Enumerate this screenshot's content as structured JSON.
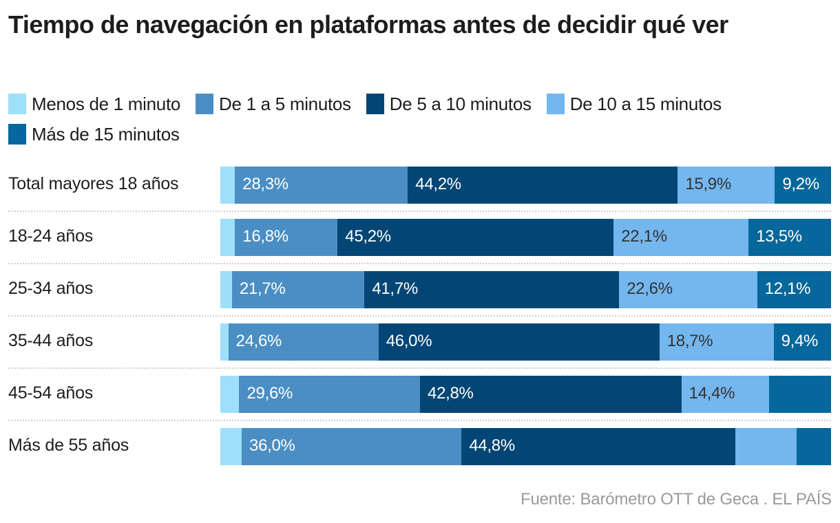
{
  "chart_data": {
    "type": "bar",
    "orientation": "horizontal",
    "stacked": true,
    "title": "Tiempo de navegación en plataformas antes de decidir qué ver",
    "xlabel": "",
    "ylabel": "",
    "xlim": [
      0,
      100
    ],
    "unit": "%",
    "grid": false,
    "legend_position": "top-left",
    "categories": [
      "Total mayores 18 años",
      "18-24 años",
      "25-34 años",
      "35-44 años",
      "45-54 años",
      "Más de 55 años"
    ],
    "series": [
      {
        "name": "Menos de 1 minuto",
        "color": "#9edffa",
        "label_color": "#ffffff",
        "values": [
          2.4,
          2.4,
          1.9,
          1.3,
          3.1,
          3.5
        ],
        "labels": [
          "",
          "",
          "",
          "",
          "",
          ""
        ]
      },
      {
        "name": "De 1 a 5 minutos",
        "color": "#4a8ec3",
        "label_color": "#ffffff",
        "values": [
          28.3,
          16.8,
          21.7,
          24.6,
          29.6,
          36.0
        ],
        "labels": [
          "28,3%",
          "16,8%",
          "21,7%",
          "24,6%",
          "29,6%",
          "36,0%"
        ]
      },
      {
        "name": "De 5 a 10 minutos",
        "color": "#034675",
        "label_color": "#ffffff",
        "values": [
          44.2,
          45.2,
          41.7,
          46.0,
          42.8,
          44.8
        ],
        "labels": [
          "44,2%",
          "45,2%",
          "41,7%",
          "46,0%",
          "42,8%",
          "44,8%"
        ]
      },
      {
        "name": "De 10 a 15 minutos",
        "color": "#74b6ee",
        "label_color": "#333333",
        "values": [
          15.9,
          22.1,
          22.6,
          18.7,
          14.4,
          10.1
        ],
        "labels": [
          "15,9%",
          "22,1%",
          "22,6%",
          "18,7%",
          "14,4%",
          ""
        ]
      },
      {
        "name": "Más de 15 minutos",
        "color": "#05679b",
        "label_color": "#ffffff",
        "values": [
          9.2,
          13.5,
          12.1,
          9.4,
          10.1,
          5.6
        ],
        "labels": [
          "9,2%",
          "13,5%",
          "12,1%",
          "9,4%",
          "",
          ""
        ]
      }
    ],
    "source": "Fuente: Barómetro OTT de Geca . EL PAÍS"
  }
}
